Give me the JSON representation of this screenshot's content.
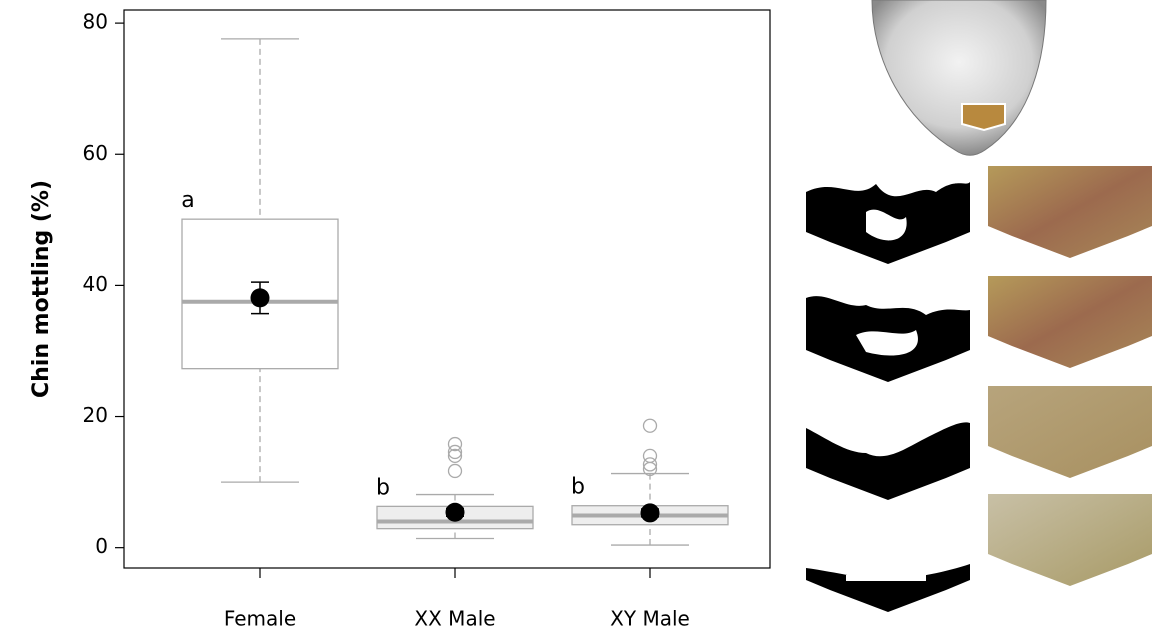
{
  "chart_data": {
    "type": "box",
    "ylabel": "Chin mottling (%)",
    "categories": [
      "Female",
      "XX Male",
      "XY Male"
    ],
    "whisker_low": [
      10.0,
      1.4,
      0.4
    ],
    "q1": [
      27.3,
      2.9,
      3.5
    ],
    "median": [
      37.5,
      4.0,
      4.9
    ],
    "q3": [
      50.1,
      6.3,
      6.4
    ],
    "whisker_high": [
      77.6,
      8.1,
      11.3
    ],
    "outliers": [
      [],
      [
        11.7,
        14.0,
        14.6,
        15.8
      ],
      [
        12.0,
        12.7,
        14.0,
        18.6
      ]
    ],
    "means": [
      38.1,
      5.4,
      5.3
    ],
    "mean_errors": [
      2.4,
      0.6,
      0.6
    ],
    "group_letters": [
      "a",
      "b",
      "b"
    ],
    "box_fills": [
      "#ffffff",
      "#eeeeee",
      "#eeeeee"
    ],
    "box_color": "#aaaaaa",
    "mean_color": "#000000",
    "ylim": [
      -3.1,
      82
    ],
    "yticks": [
      0,
      20,
      40,
      60,
      80
    ]
  }
}
